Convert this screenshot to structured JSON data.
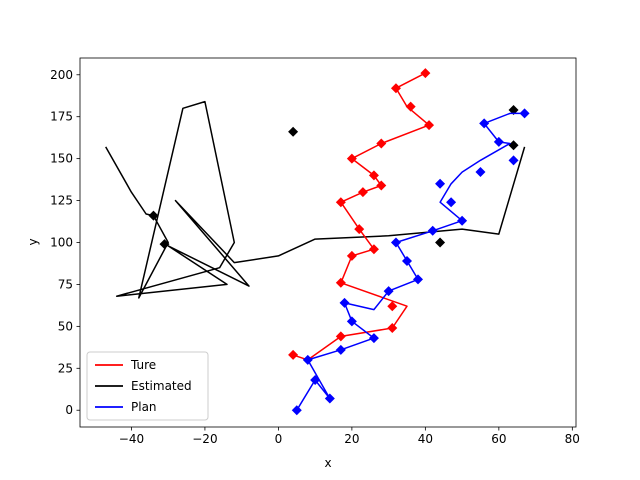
{
  "chart_data": {
    "type": "line",
    "title": "",
    "xlabel": "x",
    "ylabel": "y",
    "xlim": [
      -54,
      81
    ],
    "ylim": [
      -10,
      210
    ],
    "xticks": [
      -40,
      -20,
      0,
      20,
      40,
      60,
      80
    ],
    "yticks": [
      0,
      25,
      50,
      75,
      100,
      125,
      150,
      175,
      200
    ],
    "grid": false,
    "legend_position": "lower-left",
    "series": [
      {
        "name": "Ture",
        "color": "#ff0000",
        "x": [
          4,
          8,
          17,
          31,
          35,
          17,
          20,
          26,
          22,
          17,
          23,
          28,
          26,
          20,
          28,
          41,
          35,
          32,
          40
        ],
        "y": [
          33,
          30,
          44,
          49,
          62,
          76,
          92,
          96,
          108,
          124,
          130,
          134,
          140,
          150,
          159,
          170,
          181,
          192,
          201
        ],
        "markers": [
          [
            4,
            33
          ],
          [
            17,
            44
          ],
          [
            31,
            49
          ],
          [
            31,
            62
          ],
          [
            17,
            76
          ],
          [
            20,
            92
          ],
          [
            26,
            96
          ],
          [
            22,
            108
          ],
          [
            17,
            124
          ],
          [
            23,
            130
          ],
          [
            28,
            134
          ],
          [
            26,
            140
          ],
          [
            20,
            150
          ],
          [
            28,
            159
          ],
          [
            41,
            170
          ],
          [
            36,
            181
          ],
          [
            32,
            192
          ],
          [
            40,
            201
          ]
        ]
      },
      {
        "name": "Estimated",
        "color": "#000000",
        "x": [
          -47,
          -40,
          -36,
          -34,
          -30,
          -38,
          -26,
          -20,
          -12,
          -16,
          -44,
          -14,
          -30,
          -8,
          -28,
          -12,
          0,
          10,
          30,
          50,
          60,
          67
        ],
        "y": [
          157,
          130,
          117,
          116,
          100,
          67,
          180,
          184,
          100,
          85,
          68,
          75,
          98,
          74,
          125,
          88,
          92,
          102,
          104,
          108,
          105,
          157
        ],
        "markers": [
          [
            -34,
            116
          ],
          [
            -31,
            99
          ],
          [
            4,
            166
          ],
          [
            44,
            100
          ],
          [
            64,
            158
          ],
          [
            64,
            179
          ]
        ]
      },
      {
        "name": "Plan",
        "color": "#0000ff",
        "x": [
          5,
          10,
          14,
          8,
          17,
          26,
          20,
          18,
          26,
          30,
          38,
          35,
          32,
          42,
          50,
          44,
          47,
          50,
          55,
          63,
          60,
          56,
          63,
          67
        ],
        "y": [
          0,
          18,
          7,
          30,
          36,
          43,
          53,
          64,
          60,
          71,
          78,
          89,
          100,
          107,
          113,
          124,
          135,
          142,
          149,
          159,
          160,
          171,
          177,
          177
        ],
        "markers": [
          [
            5,
            0
          ],
          [
            10,
            18
          ],
          [
            14,
            7
          ],
          [
            8,
            30
          ],
          [
            17,
            36
          ],
          [
            26,
            43
          ],
          [
            20,
            53
          ],
          [
            18,
            64
          ],
          [
            30,
            71
          ],
          [
            38,
            78
          ],
          [
            35,
            89
          ],
          [
            32,
            100
          ],
          [
            42,
            107
          ],
          [
            50,
            113
          ],
          [
            47,
            124
          ],
          [
            44,
            135
          ],
          [
            55,
            142
          ],
          [
            64,
            149
          ],
          [
            60,
            160
          ],
          [
            56,
            171
          ],
          [
            67,
            177
          ]
        ]
      }
    ]
  }
}
